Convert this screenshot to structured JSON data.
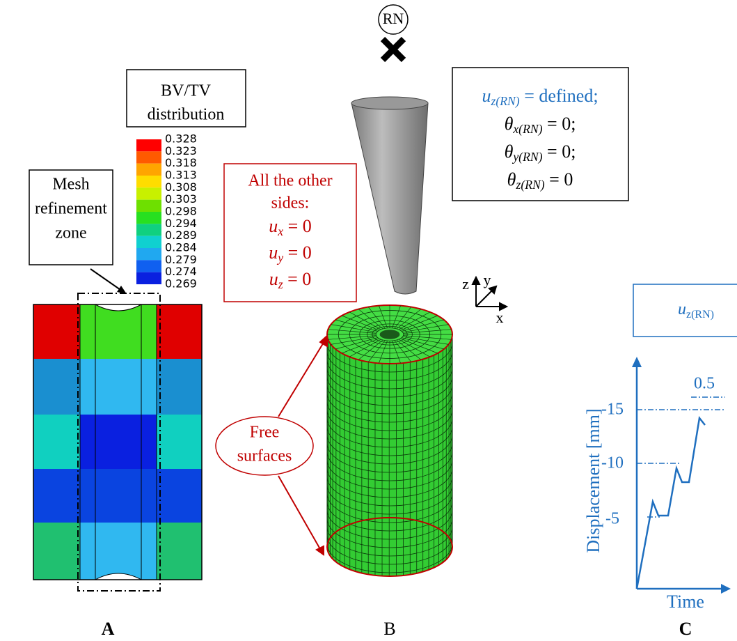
{
  "panel_a": {
    "legend_title": [
      "BV/TV",
      "distribution"
    ],
    "legend_values": [
      "0.328",
      "0.323",
      "0.318",
      "0.313",
      "0.308",
      "0.303",
      "0.298",
      "0.294",
      "0.289",
      "0.284",
      "0.279",
      "0.274",
      "0.269"
    ],
    "mesh_label": [
      "Mesh",
      "refinement",
      "zone"
    ],
    "label": "A"
  },
  "panel_b": {
    "node": "RN",
    "bc_box": [
      {
        "symbol": "u",
        "sub": "z(RN)",
        "rest": " = defined;"
      },
      {
        "symbol": "θ",
        "sub": "x(RN)",
        "rest": " = 0;"
      },
      {
        "symbol": "θ",
        "sub": "y(RN)",
        "rest": " = 0;"
      },
      {
        "symbol": "θ",
        "sub": "z(RN)",
        "rest": " = 0"
      }
    ],
    "other_sides": {
      "lines": [
        "All the other",
        "sides:"
      ],
      "conditions": [
        {
          "symbol": "u",
          "sub": "x",
          "rest": " = 0"
        },
        {
          "symbol": "u",
          "sub": "y",
          "rest": " = 0"
        },
        {
          "symbol": "u",
          "sub": "z",
          "rest": " = 0"
        }
      ]
    },
    "free_surfaces": [
      "Free",
      "surfaces"
    ],
    "axes": [
      "z",
      "y",
      "x"
    ],
    "label": "B"
  },
  "panel_c": {
    "box": {
      "symbol": "u",
      "sub": "z(RN)"
    },
    "y_label": "Displacement [mm]",
    "x_label": "Time",
    "ticks": [
      "-15",
      "-10",
      "-5"
    ],
    "annotation": "0.5",
    "label": "C"
  }
}
